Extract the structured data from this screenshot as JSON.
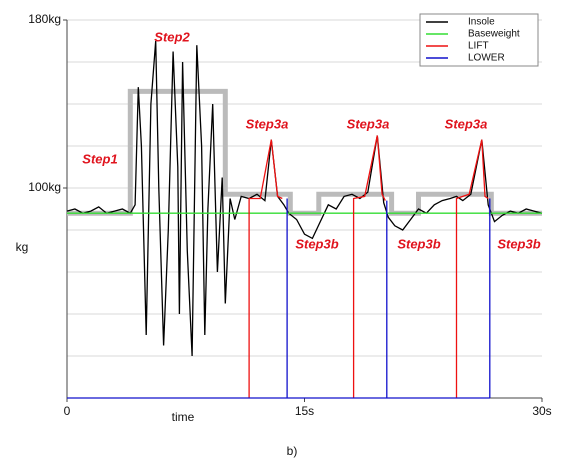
{
  "chart_data": {
    "type": "line",
    "x_label": "time",
    "y_label": "kg",
    "caption": "b)",
    "xlim": [
      0,
      30
    ],
    "ylim": [
      0,
      180
    ],
    "xticks": [
      0,
      {
        "value": 15,
        "label": "15s"
      },
      {
        "value": 30,
        "label": "30s"
      }
    ],
    "yticks": [
      {
        "value": 100,
        "label": "100kg"
      },
      {
        "value": 180,
        "label": "180kg"
      }
    ],
    "ygrid": [
      0,
      20,
      40,
      60,
      80,
      100,
      120,
      140,
      160,
      180
    ],
    "legend": "top-right",
    "annotations": [
      "Step1",
      "Step2",
      "Step3a",
      "Step3a",
      "Step3a",
      "Step3b",
      "Step3b",
      "Step3b"
    ],
    "reference": {
      "color": "#bbbbbb",
      "x": [
        0,
        4,
        4,
        10,
        10,
        14.1,
        14.1,
        15.9,
        15.9,
        20.5,
        20.5,
        22.2,
        22.2,
        26.8,
        26.8,
        30
      ],
      "values": [
        88,
        88,
        146,
        146,
        97,
        97,
        88,
        88,
        97,
        97,
        88,
        88,
        97,
        97,
        88,
        88
      ]
    },
    "series": [
      {
        "name": "Insole",
        "color": "#000000",
        "x": [
          0,
          0.5,
          1,
          1.5,
          2,
          2.5,
          3,
          3.5,
          4,
          4.3,
          4.5,
          4.7,
          5.0,
          5.3,
          5.6,
          5.8,
          6.1,
          6.4,
          6.7,
          7.0,
          7.1,
          7.3,
          7.6,
          7.9,
          8.2,
          8.5,
          8.7,
          8.9,
          9.2,
          9.5,
          9.8,
          10.0,
          10.3,
          10.6,
          11,
          11.5,
          12,
          12.5,
          12.9,
          13.3,
          13.7,
          14,
          14.5,
          15,
          15.5,
          16,
          16.5,
          17,
          17.5,
          18,
          18.5,
          19,
          19.6,
          20,
          20.3,
          20.7,
          21.2,
          21.7,
          22.2,
          22.7,
          23.2,
          23.7,
          24.2,
          24.6,
          25,
          25.5,
          26.2,
          26.6,
          27,
          27.5,
          28,
          28.5,
          29,
          29.5,
          30
        ],
        "values": [
          89,
          90,
          88,
          89,
          91,
          88,
          89,
          90,
          88,
          92,
          148,
          120,
          30,
          140,
          170,
          100,
          25,
          80,
          165,
          110,
          40,
          160,
          70,
          20,
          168,
          120,
          30,
          90,
          140,
          60,
          105,
          45,
          95,
          85,
          96,
          95,
          97,
          94,
          123,
          96,
          92,
          88,
          85,
          78,
          76,
          84,
          92,
          90,
          96,
          97,
          95,
          98,
          125,
          93,
          86,
          82,
          80,
          85,
          90,
          88,
          92,
          94,
          95,
          96,
          94,
          97,
          123,
          92,
          84,
          87,
          89,
          88,
          90,
          89,
          88
        ]
      },
      {
        "name": "Baseweight",
        "color": "#33dd33",
        "x": [
          0,
          30
        ],
        "values": [
          88,
          88
        ]
      },
      {
        "name": "LIFT",
        "color": "#ee1111",
        "x": [
          11.5,
          11.5,
          12.2,
          12.9,
          13.3,
          13.6,
          13.6,
          18.1,
          18.1,
          18.8,
          19.6,
          19.9,
          20.1,
          20.1,
          24.6,
          24.6,
          25.4,
          26.2,
          26.4,
          26.6
        ],
        "values": [
          0,
          95,
          95,
          123,
          96,
          95,
          null,
          0,
          95,
          96,
          125,
          97,
          94,
          null,
          0,
          95,
          97,
          123,
          96,
          95
        ]
      },
      {
        "name": "LOWER",
        "color": "#1111cc",
        "x": [
          13.9,
          13.9,
          13.9,
          20.2,
          20.2,
          20.2,
          26.7,
          26.7,
          26.7,
          0,
          26.7
        ],
        "values": [
          95,
          0,
          null,
          94,
          0,
          null,
          95,
          0,
          null,
          0,
          0
        ]
      }
    ]
  }
}
